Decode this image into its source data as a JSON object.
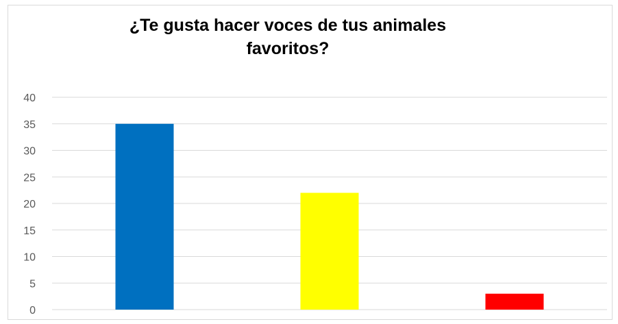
{
  "chart_data": {
    "type": "bar",
    "title_lines": [
      "¿Te gusta hacer voces de tus animales",
      "favoritos?"
    ],
    "categories": [
      "",
      "",
      ""
    ],
    "values": [
      35,
      22,
      3
    ],
    "colors": [
      "#0070C0",
      "#FFFF00",
      "#FF0000"
    ],
    "ylim": [
      0,
      40
    ],
    "yticks": [
      "0",
      "5",
      "10",
      "15",
      "20",
      "25",
      "30",
      "35",
      "40"
    ],
    "grid": true,
    "legend": "none",
    "xlabel": "",
    "ylabel": ""
  }
}
